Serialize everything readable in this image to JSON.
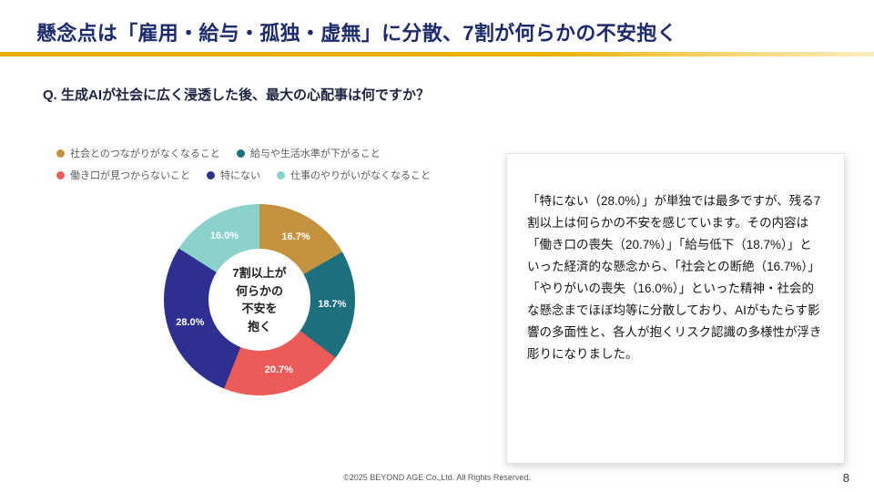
{
  "slide": {
    "title": "懸念点は「雇用・給与・孤独・虚無」に分散、7割が何らかの不安抱く",
    "question": "Q. 生成AIが社会に広く浸透した後、最大の心配事は何ですか？",
    "footer": "©2025 BEYOND AGE Co.,Ltd. All Rights Reserved.",
    "page_number": "8"
  },
  "chart_data": {
    "type": "pie",
    "donut": true,
    "title": "",
    "legend_position": "top",
    "center_label": "7割以上が\n何らかの\n不安を\n抱く",
    "segments": [
      {
        "label": "社会とのつながりがなくなること",
        "value": 16.7,
        "display": "16.7%",
        "color": "#c49340"
      },
      {
        "label": "給与や生活水準が下がること",
        "value": 18.7,
        "display": "18.7%",
        "color": "#1c6f7d"
      },
      {
        "label": "働き口が見つからないこと",
        "value": 20.7,
        "display": "20.7%",
        "color": "#ec5b57"
      },
      {
        "label": "特にない",
        "value": 28.0,
        "display": "28.0%",
        "color": "#2d3091"
      },
      {
        "label": "仕事のやりがいがなくなること",
        "value": 16.0,
        "display": "16.0%",
        "color": "#8ad2cb"
      }
    ],
    "legend_rows": [
      [
        0,
        1
      ],
      [
        2,
        3,
        4
      ]
    ]
  },
  "callout": {
    "text": "「特にない（28.0%）」が単独では最多ですが、残る7割以上は何らかの不安を感じています。その内容は「働き口の喪失（20.7%）」「給与低下（18.7%）」といった経済的な懸念から、「社会との断絶（16.7%）」「やりがいの喪失（16.0%）」といった精神・社会的な懸念までほぼ均等に分散しており、AIがもたらす影響の多面性と、各人が抱くリスク認識の多様性が浮き彫りになりました。"
  },
  "theme": {
    "title_color": "#1c2b6e",
    "accent_from": "#eead00",
    "accent_to": "#fbedbf"
  }
}
